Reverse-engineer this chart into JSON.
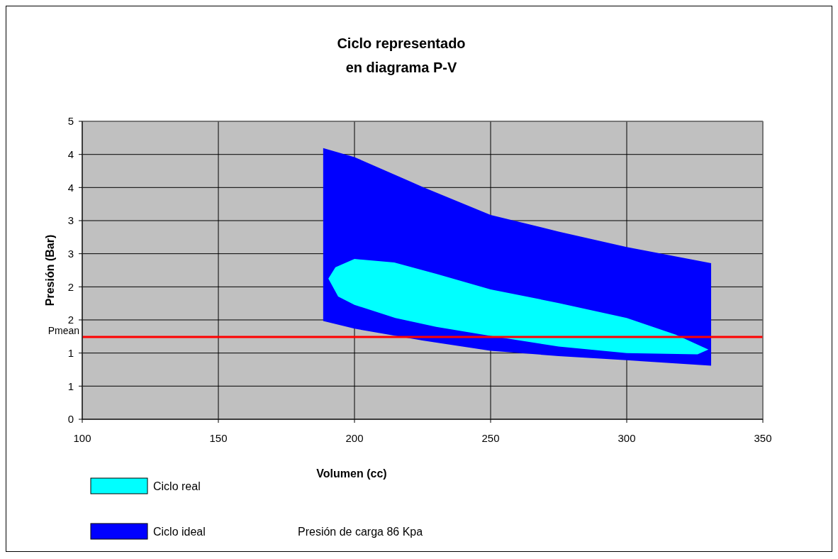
{
  "chart_data": {
    "type": "area",
    "title": "Ciclo representado\nen diagrama P-V",
    "xlabel": "Volumen (cc)",
    "ylabel": "Presión (Bar)",
    "xlim": [
      100,
      350
    ],
    "xticks": [
      100,
      150,
      200,
      250,
      300,
      350
    ],
    "ylim": [
      0,
      5
    ],
    "yticks": [
      0,
      {
        "value": 0.556,
        "label": "1"
      },
      {
        "value": 1.111,
        "label": "1"
      },
      {
        "value": 1.667,
        "label": "2"
      },
      {
        "value": 2.222,
        "label": "2"
      },
      {
        "value": 2.778,
        "label": "3"
      },
      {
        "value": 3.333,
        "label": "3"
      },
      {
        "value": 3.889,
        "label": "4"
      },
      {
        "value": 4.444,
        "label": "4"
      },
      5
    ],
    "grid": true,
    "legend": "bottom",
    "series": [
      {
        "name": "Ciclo ideal",
        "color": "#0000ff",
        "x": [
          188.5,
          200,
          225,
          250,
          275,
          300,
          331,
          331,
          300,
          275,
          250,
          225,
          200,
          188.5
        ],
        "values": [
          4.55,
          4.4,
          3.9,
          3.43,
          3.15,
          2.89,
          2.62,
          0.9,
          0.99,
          1.06,
          1.15,
          1.32,
          1.52,
          1.65
        ]
      },
      {
        "name": "Ciclo real",
        "color": "#00ffff",
        "x": [
          190.4,
          193,
          200,
          214.6,
          230,
          250,
          275,
          300,
          318,
          330,
          326,
          300,
          275,
          250,
          230,
          215,
          200,
          194,
          190.4
        ],
        "values": [
          2.36,
          2.55,
          2.69,
          2.63,
          2.44,
          2.18,
          1.95,
          1.7,
          1.42,
          1.17,
          1.09,
          1.11,
          1.22,
          1.4,
          1.55,
          1.7,
          1.92,
          2.06,
          2.36
        ]
      }
    ],
    "ref_lines": [
      {
        "axis": "y",
        "value": 1.38,
        "label": "Pmean",
        "color": "#ff0000"
      }
    ],
    "annotations": [
      "Presión de carga 86 Kpa"
    ]
  }
}
